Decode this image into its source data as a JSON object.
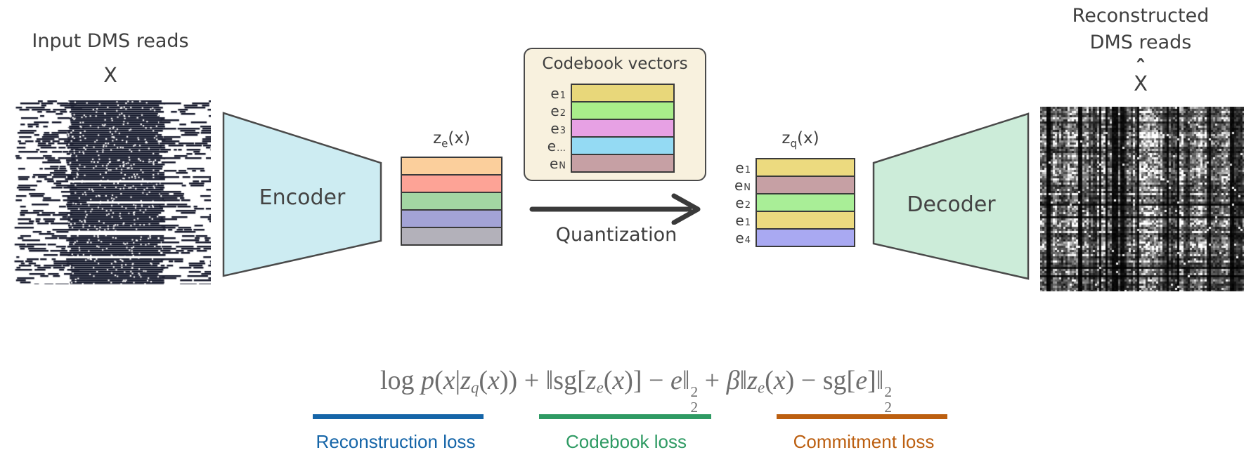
{
  "palette": {
    "background": "#ffffff",
    "stroke": "#4a4a4a",
    "text_dark": "#3f3f3f",
    "formula_gray": "#6e6e6e"
  },
  "input": {
    "title": "Input DMS reads",
    "symbol": "X"
  },
  "encoder": {
    "label": "Encoder",
    "fill": "#cdecf2"
  },
  "latent": {
    "label": {
      "pre": "z",
      "sub": "e",
      "post": "(x)"
    },
    "bars": [
      {
        "color": "#fbcf9c"
      },
      {
        "color": "#fda396"
      },
      {
        "color": "#a3d6a3"
      },
      {
        "color": "#a3a3d6"
      },
      {
        "color": "#b3b1ba"
      }
    ]
  },
  "codebook": {
    "title": "Codebook vectors",
    "fill": "#f8f1de",
    "entries": [
      {
        "base": "e",
        "sub": "1",
        "color": "#e8d77a"
      },
      {
        "base": "e",
        "sub": "2",
        "color": "#a9ee8a"
      },
      {
        "base": "e",
        "sub": "3",
        "color": "#e7a1e4"
      },
      {
        "base": "e",
        "sub": "…",
        "color": "#94daf3"
      },
      {
        "base": "e",
        "sub": "N",
        "color": "#c6a0a4"
      }
    ]
  },
  "quantization": {
    "label": "Quantization"
  },
  "quantized": {
    "label": {
      "pre": "z",
      "sub": "q",
      "post": "(x)"
    },
    "entries": [
      {
        "base": "e",
        "sub": "1",
        "color": "#ecda7f"
      },
      {
        "base": "e",
        "sub": "N",
        "color": "#c6a0a4"
      },
      {
        "base": "e",
        "sub": "2",
        "color": "#a9ee97"
      },
      {
        "base": "e",
        "sub": "1",
        "color": "#ecda7f"
      },
      {
        "base": "e",
        "sub": "4",
        "color": "#a9a9f2"
      }
    ]
  },
  "decoder": {
    "label": "Decoder",
    "fill": "#ccecd9"
  },
  "output": {
    "title_line1": "Reconstructed",
    "title_line2": "DMS reads",
    "symbol": "X",
    "hat": "ˆ"
  },
  "formula": {
    "segments": [
      {
        "t": "log ",
        "s": "rm"
      },
      {
        "t": "p",
        "s": "it"
      },
      {
        "t": "(",
        "s": "rm"
      },
      {
        "t": "x",
        "s": "it"
      },
      {
        "t": "|",
        "s": "rm"
      },
      {
        "t": "z",
        "s": "it"
      },
      {
        "t": "q",
        "s": "sub"
      },
      {
        "t": "(",
        "s": "rm"
      },
      {
        "t": "x",
        "s": "it"
      },
      {
        "t": ")) + ",
        "s": "rm"
      },
      {
        "t": "‖sg[",
        "s": "rm"
      },
      {
        "t": "z",
        "s": "it"
      },
      {
        "t": "e",
        "s": "sub"
      },
      {
        "t": "(",
        "s": "rm"
      },
      {
        "t": "x",
        "s": "it"
      },
      {
        "t": ")] − ",
        "s": "rm"
      },
      {
        "t": "e",
        "s": "it"
      },
      {
        "t": "‖",
        "s": "rm"
      },
      {
        "t": "2|2",
        "s": "ss"
      },
      {
        "t": " + ",
        "s": "rm"
      },
      {
        "t": "β",
        "s": "it"
      },
      {
        "t": "‖",
        "s": "rm"
      },
      {
        "t": "z",
        "s": "it"
      },
      {
        "t": "e",
        "s": "sub"
      },
      {
        "t": "(",
        "s": "rm"
      },
      {
        "t": "x",
        "s": "it"
      },
      {
        "t": ") − sg[",
        "s": "rm"
      },
      {
        "t": "e",
        "s": "it"
      },
      {
        "t": "]‖",
        "s": "rm"
      },
      {
        "t": "2|2",
        "s": "ss"
      }
    ]
  },
  "losses": [
    {
      "label": "Reconstruction loss",
      "color": "#1565a8"
    },
    {
      "label": "Codebook loss",
      "color": "#2e9a63"
    },
    {
      "label": "Commitment loss",
      "color": "#bc5f10"
    }
  ]
}
